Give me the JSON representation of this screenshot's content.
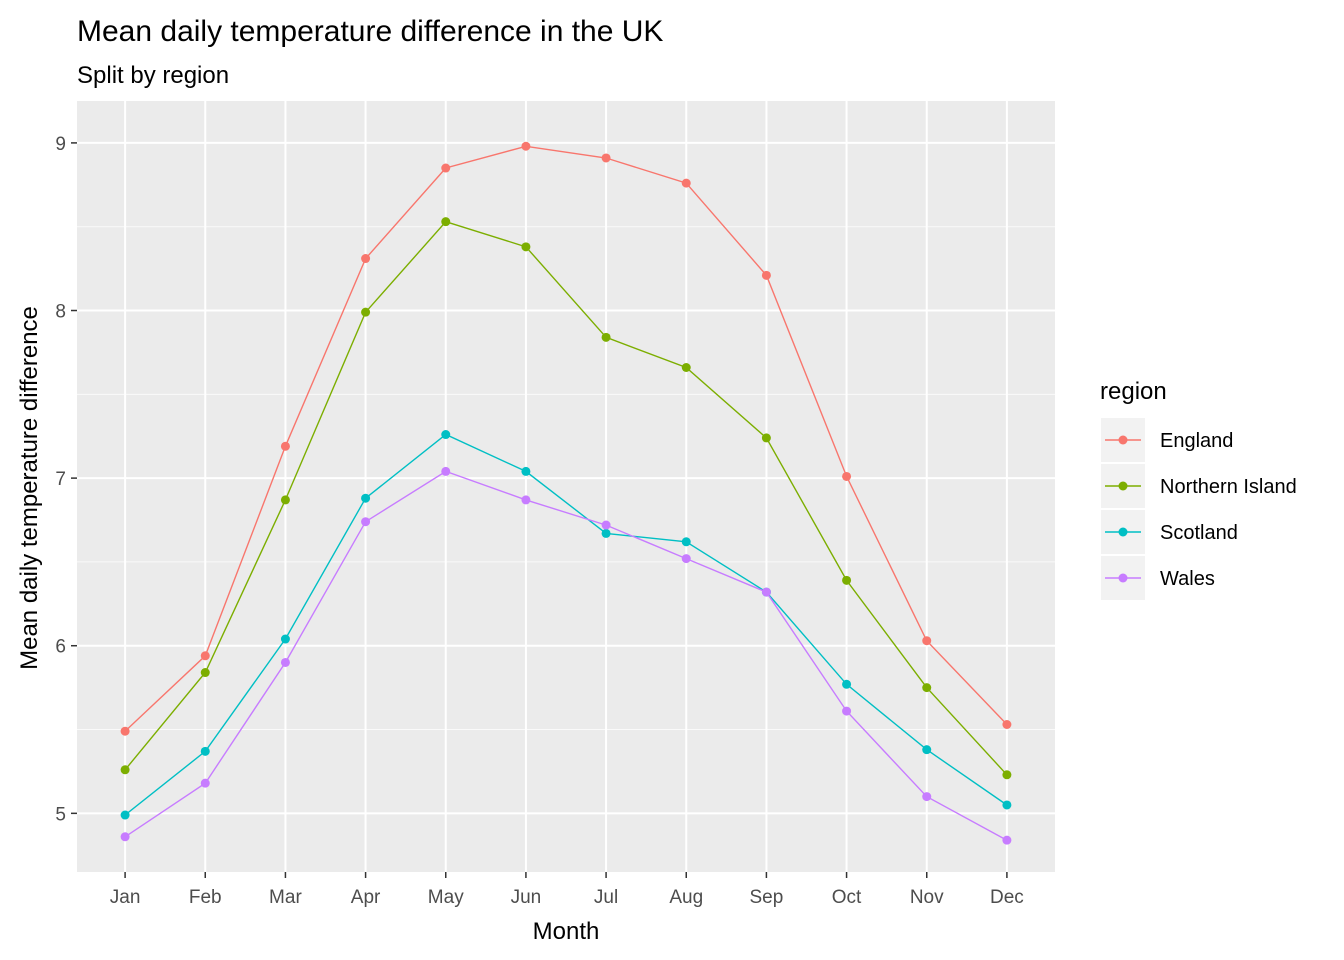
{
  "chart_data": {
    "type": "line",
    "title": "Mean daily temperature difference in the UK",
    "subtitle": "Split by region",
    "xlabel": "Month",
    "ylabel": "Mean daily temperature difference",
    "categories": [
      "Jan",
      "Feb",
      "Mar",
      "Apr",
      "May",
      "Jun",
      "Jul",
      "Aug",
      "Sep",
      "Oct",
      "Nov",
      "Dec"
    ],
    "ylim": [
      4.65,
      9.25
    ],
    "yticks": [
      5,
      6,
      7,
      8,
      9
    ],
    "grid": true,
    "legend": {
      "title": "region",
      "placement": "right"
    },
    "series": [
      {
        "name": "England",
        "color": "#F8766D",
        "values": [
          5.49,
          5.94,
          7.19,
          8.31,
          8.85,
          8.98,
          8.91,
          8.76,
          8.21,
          7.01,
          6.03,
          5.53
        ]
      },
      {
        "name": "Northern Island",
        "color": "#7CAE00",
        "values": [
          5.26,
          5.84,
          6.87,
          7.99,
          8.53,
          8.38,
          7.84,
          7.66,
          7.24,
          6.39,
          5.75,
          5.23
        ]
      },
      {
        "name": "Scotland",
        "color": "#00BFC4",
        "values": [
          4.99,
          5.37,
          6.04,
          6.88,
          7.26,
          7.04,
          6.67,
          6.62,
          6.32,
          5.77,
          5.38,
          5.05
        ]
      },
      {
        "name": "Wales",
        "color": "#C77CFF",
        "values": [
          4.86,
          5.18,
          5.9,
          6.74,
          7.04,
          6.87,
          6.72,
          6.52,
          6.32,
          5.61,
          5.1,
          4.84
        ]
      }
    ]
  }
}
